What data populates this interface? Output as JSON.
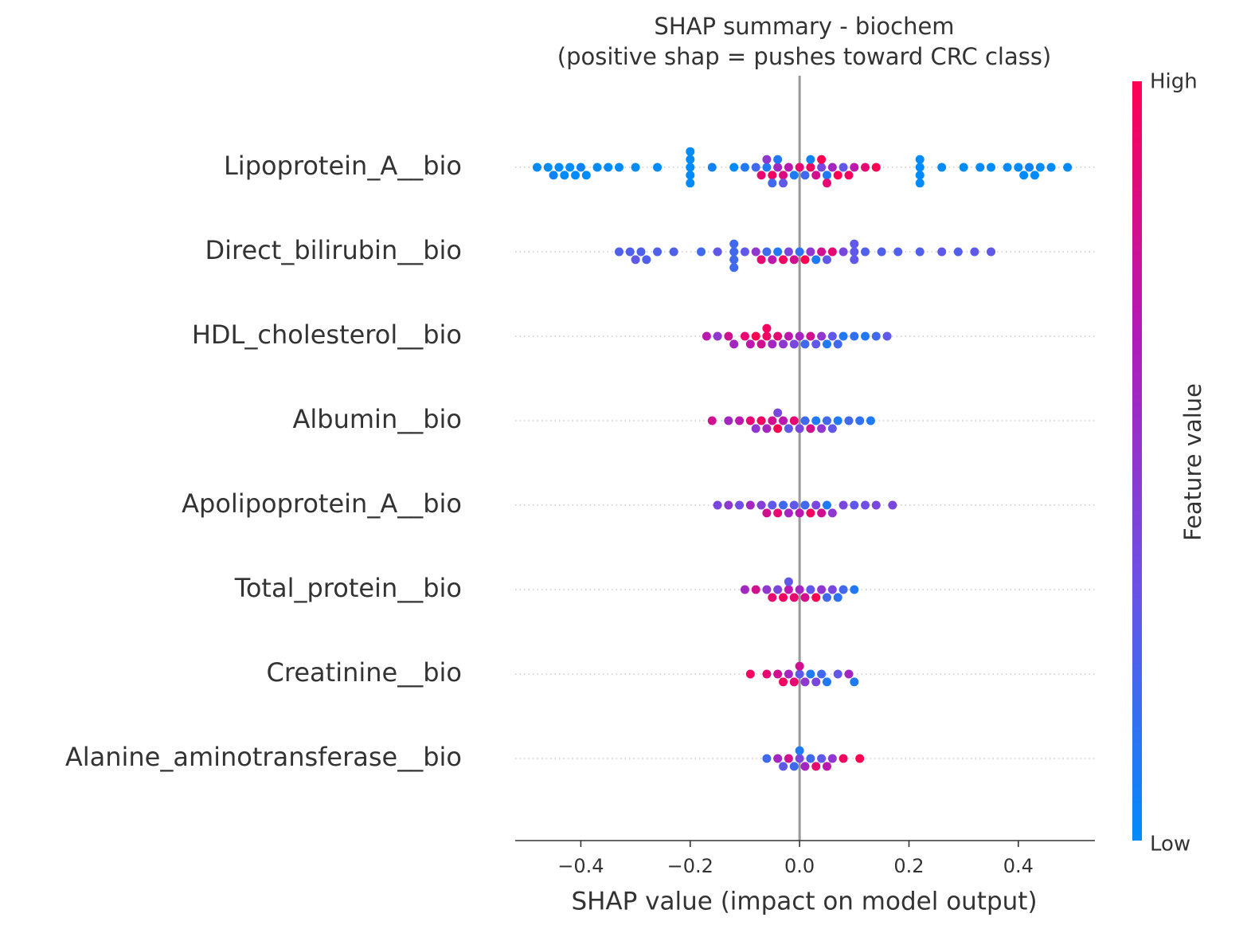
{
  "chart_data": {
    "type": "beeswarm",
    "title": "SHAP summary - biochem",
    "subtitle": "(positive shap = pushes toward CRC class)",
    "xlabel": "SHAP value (impact on model output)",
    "xlim": [
      -0.52,
      0.54
    ],
    "xticks": [
      {
        "value": -0.4,
        "label": "−0.4"
      },
      {
        "value": -0.2,
        "label": "−0.2"
      },
      {
        "value": 0.0,
        "label": "0.0"
      },
      0.2,
      0.4
    ],
    "colorbar_label": "Feature value",
    "colorbar_high": "High",
    "colorbar_low": "Low",
    "colormap": [
      "#008bfb",
      "#6b52e6",
      "#b21bb8",
      "#ff0052"
    ],
    "series": [
      {
        "name": "Lipoprotein_A__bio",
        "points": [
          [
            -0.48,
            0
          ],
          [
            -0.46,
            0
          ],
          [
            -0.45,
            0.05
          ],
          [
            -0.44,
            0
          ],
          [
            -0.43,
            0
          ],
          [
            -0.42,
            0
          ],
          [
            -0.41,
            0
          ],
          [
            -0.4,
            0.05
          ],
          [
            -0.39,
            0
          ],
          [
            -0.37,
            0
          ],
          [
            -0.35,
            0
          ],
          [
            -0.33,
            0
          ],
          [
            -0.3,
            0
          ],
          [
            -0.26,
            0
          ],
          [
            -0.2,
            0
          ],
          [
            -0.2,
            0
          ],
          [
            -0.2,
            0
          ],
          [
            -0.2,
            0
          ],
          [
            -0.2,
            0
          ],
          [
            -0.16,
            0.05
          ],
          [
            -0.12,
            0
          ],
          [
            -0.1,
            0.1
          ],
          [
            -0.08,
            0.2
          ],
          [
            -0.07,
            0.9
          ],
          [
            -0.06,
            0.1
          ],
          [
            -0.06,
            0.5
          ],
          [
            -0.05,
            0.95
          ],
          [
            -0.05,
            0.2
          ],
          [
            -0.04,
            0.6
          ],
          [
            -0.04,
            0.1
          ],
          [
            -0.03,
            0.85
          ],
          [
            -0.03,
            0.3
          ],
          [
            -0.02,
            0.7
          ],
          [
            -0.01,
            0.1
          ],
          [
            0.0,
            0.9
          ],
          [
            0.01,
            0.2
          ],
          [
            0.02,
            0.95
          ],
          [
            0.02,
            0.05
          ],
          [
            0.03,
            0.8
          ],
          [
            0.04,
            0.4
          ],
          [
            0.04,
            1
          ],
          [
            0.05,
            0.1
          ],
          [
            0.05,
            0.9
          ],
          [
            0.06,
            0.6
          ],
          [
            0.07,
            1
          ],
          [
            0.08,
            0.3
          ],
          [
            0.09,
            0.95
          ],
          [
            0.1,
            0.7
          ],
          [
            0.12,
            0.9
          ],
          [
            0.14,
            1
          ],
          [
            0.22,
            0
          ],
          [
            0.22,
            0
          ],
          [
            0.22,
            0
          ],
          [
            0.22,
            0
          ],
          [
            0.26,
            0
          ],
          [
            0.3,
            0
          ],
          [
            0.33,
            0
          ],
          [
            0.35,
            0
          ],
          [
            0.38,
            0
          ],
          [
            0.4,
            0
          ],
          [
            0.41,
            0
          ],
          [
            0.42,
            0.05
          ],
          [
            0.43,
            0
          ],
          [
            0.44,
            0
          ],
          [
            0.46,
            0
          ],
          [
            0.49,
            0
          ]
        ]
      },
      {
        "name": "Direct_bilirubin__bio",
        "points": [
          [
            -0.33,
            0.25
          ],
          [
            -0.31,
            0.25
          ],
          [
            -0.3,
            0.3
          ],
          [
            -0.29,
            0.25
          ],
          [
            -0.28,
            0.25
          ],
          [
            -0.26,
            0.25
          ],
          [
            -0.23,
            0.25
          ],
          [
            -0.18,
            0.2
          ],
          [
            -0.15,
            0.3
          ],
          [
            -0.12,
            0.2
          ],
          [
            -0.12,
            0.2
          ],
          [
            -0.12,
            0.2
          ],
          [
            -0.12,
            0.2
          ],
          [
            -0.1,
            0.3
          ],
          [
            -0.08,
            0.5
          ],
          [
            -0.07,
            0.9
          ],
          [
            -0.06,
            0.2
          ],
          [
            -0.05,
            0.7
          ],
          [
            -0.04,
            0.1
          ],
          [
            -0.03,
            0.95
          ],
          [
            -0.02,
            0.4
          ],
          [
            -0.01,
            0.8
          ],
          [
            0.0,
            0.15
          ],
          [
            0.01,
            1
          ],
          [
            0.02,
            0.5
          ],
          [
            0.03,
            0.1
          ],
          [
            0.04,
            0.8
          ],
          [
            0.05,
            0.3
          ],
          [
            0.06,
            0.9
          ],
          [
            0.08,
            0.4
          ],
          [
            0.1,
            0.3
          ],
          [
            0.1,
            0.3
          ],
          [
            0.1,
            0.3
          ],
          [
            0.12,
            0.25
          ],
          [
            0.15,
            0.25
          ],
          [
            0.18,
            0.25
          ],
          [
            0.22,
            0.25
          ],
          [
            0.26,
            0.3
          ],
          [
            0.29,
            0.25
          ],
          [
            0.32,
            0.3
          ],
          [
            0.35,
            0.3
          ]
        ]
      },
      {
        "name": "HDL_cholesterol__bio",
        "points": [
          [
            -0.17,
            0.7
          ],
          [
            -0.15,
            0.5
          ],
          [
            -0.13,
            0.8
          ],
          [
            -0.12,
            0.6
          ],
          [
            -0.1,
            0.9
          ],
          [
            -0.09,
            0.7
          ],
          [
            -0.08,
            1
          ],
          [
            -0.07,
            0.8
          ],
          [
            -0.06,
            0.95
          ],
          [
            -0.06,
            0.95
          ],
          [
            -0.05,
            0.6
          ],
          [
            -0.04,
            0.9
          ],
          [
            -0.03,
            0.5
          ],
          [
            -0.02,
            0.7
          ],
          [
            -0.01,
            0.4
          ],
          [
            0.0,
            0.6
          ],
          [
            0.01,
            0.2
          ],
          [
            0.02,
            0.8
          ],
          [
            0.03,
            0.3
          ],
          [
            0.04,
            0.5
          ],
          [
            0.05,
            0.1
          ],
          [
            0.06,
            0.3
          ],
          [
            0.07,
            0.2
          ],
          [
            0.08,
            0.1
          ],
          [
            0.1,
            0.15
          ],
          [
            0.12,
            0.1
          ],
          [
            0.14,
            0.2
          ],
          [
            0.16,
            0.3
          ]
        ]
      },
      {
        "name": "Albumin__bio",
        "points": [
          [
            -0.16,
            0.8
          ],
          [
            -0.13,
            0.6
          ],
          [
            -0.11,
            0.7
          ],
          [
            -0.09,
            0.9
          ],
          [
            -0.08,
            0.5
          ],
          [
            -0.07,
            0.95
          ],
          [
            -0.06,
            0.6
          ],
          [
            -0.05,
            0.8
          ],
          [
            -0.04,
            1
          ],
          [
            -0.04,
            0.4
          ],
          [
            -0.03,
            0.7
          ],
          [
            -0.02,
            0.3
          ],
          [
            -0.01,
            0.9
          ],
          [
            0.0,
            0.4
          ],
          [
            0.01,
            0.2
          ],
          [
            0.02,
            0.8
          ],
          [
            0.03,
            0.1
          ],
          [
            0.04,
            0.5
          ],
          [
            0.05,
            0.2
          ],
          [
            0.06,
            0.3
          ],
          [
            0.07,
            0.1
          ],
          [
            0.09,
            0.2
          ],
          [
            0.11,
            0.15
          ],
          [
            0.13,
            0.1
          ]
        ]
      },
      {
        "name": "Apolipoprotein_A__bio",
        "points": [
          [
            -0.15,
            0.4
          ],
          [
            -0.13,
            0.5
          ],
          [
            -0.11,
            0.35
          ],
          [
            -0.09,
            0.6
          ],
          [
            -0.07,
            0.45
          ],
          [
            -0.06,
            0.8
          ],
          [
            -0.05,
            0.3
          ],
          [
            -0.04,
            0.9
          ],
          [
            -0.03,
            0.2
          ],
          [
            -0.02,
            0.6
          ],
          [
            -0.01,
            0.3
          ],
          [
            0.0,
            0.7
          ],
          [
            0.01,
            0.2
          ],
          [
            0.02,
            0.95
          ],
          [
            0.03,
            0.4
          ],
          [
            0.04,
            0.8
          ],
          [
            0.05,
            0.1
          ],
          [
            0.06,
            0.5
          ],
          [
            0.08,
            0.4
          ],
          [
            0.1,
            0.3
          ],
          [
            0.12,
            0.35
          ],
          [
            0.14,
            0.4
          ],
          [
            0.17,
            0.4
          ]
        ]
      },
      {
        "name": "Total_protein__bio",
        "points": [
          [
            -0.1,
            0.6
          ],
          [
            -0.08,
            0.8
          ],
          [
            -0.06,
            0.5
          ],
          [
            -0.05,
            0.9
          ],
          [
            -0.04,
            0.4
          ],
          [
            -0.03,
            0.95
          ],
          [
            -0.02,
            0.7
          ],
          [
            -0.02,
            0.3
          ],
          [
            -0.01,
            0.9
          ],
          [
            0.0,
            0.6
          ],
          [
            0.01,
            0.8
          ],
          [
            0.02,
            0.3
          ],
          [
            0.03,
            1
          ],
          [
            0.04,
            0.5
          ],
          [
            0.05,
            0.2
          ],
          [
            0.06,
            0.4
          ],
          [
            0.07,
            0.15
          ],
          [
            0.08,
            0.2
          ],
          [
            0.1,
            0.1
          ]
        ]
      },
      {
        "name": "Creatinine__bio",
        "points": [
          [
            -0.09,
            0.95
          ],
          [
            -0.06,
            0.9
          ],
          [
            -0.04,
            0.8
          ],
          [
            -0.03,
            0.95
          ],
          [
            -0.02,
            0.6
          ],
          [
            -0.01,
            0.9
          ],
          [
            0.0,
            0.3
          ],
          [
            0.0,
            0.8
          ],
          [
            0.01,
            0.5
          ],
          [
            0.02,
            0.1
          ],
          [
            0.03,
            0.4
          ],
          [
            0.04,
            0.2
          ],
          [
            0.05,
            0.1
          ],
          [
            0.07,
            0.3
          ],
          [
            0.09,
            0.6
          ],
          [
            0.1,
            0.1
          ]
        ]
      },
      {
        "name": "Alanine_aminotransferase__bio",
        "points": [
          [
            -0.06,
            0.2
          ],
          [
            -0.04,
            0.6
          ],
          [
            -0.03,
            0.3
          ],
          [
            -0.02,
            0.8
          ],
          [
            -0.01,
            0.2
          ],
          [
            0.0,
            0.4
          ],
          [
            0.0,
            0.1
          ],
          [
            0.01,
            0.6
          ],
          [
            0.02,
            0.2
          ],
          [
            0.03,
            0.9
          ],
          [
            0.04,
            0.3
          ],
          [
            0.05,
            0.7
          ],
          [
            0.06,
            0.5
          ],
          [
            0.08,
            0.95
          ],
          [
            0.11,
            1
          ]
        ]
      }
    ]
  }
}
